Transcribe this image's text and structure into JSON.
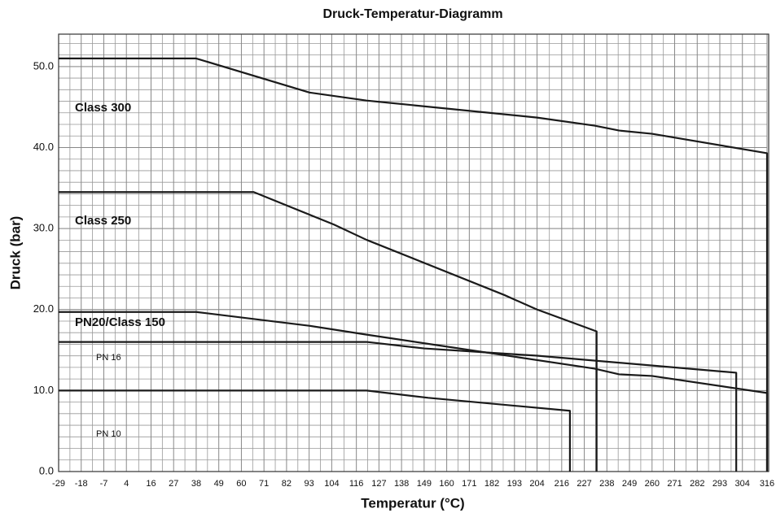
{
  "chart_data": {
    "type": "line",
    "title": "Druck-Temperatur-Diagramm",
    "x_label": "Temperatur (°C)",
    "y_label": "Druck (bar)",
    "xlim": [
      -29,
      316
    ],
    "ylim": [
      0,
      54
    ],
    "xticks": [
      -29,
      -18,
      -7,
      4,
      16,
      27,
      38,
      49,
      60,
      71,
      82,
      93,
      104,
      116,
      127,
      138,
      149,
      160,
      171,
      182,
      193,
      204,
      216,
      227,
      238,
      249,
      260,
      271,
      282,
      293,
      304,
      316
    ],
    "yticks": [
      {
        "value": 0,
        "label": "0.0"
      },
      {
        "value": 10,
        "label": "10.0"
      },
      {
        "value": 20,
        "label": "20.0"
      },
      {
        "value": 30,
        "label": "30.0"
      },
      {
        "value": 40,
        "label": "40.0"
      },
      {
        "value": 50,
        "label": "50.0"
      }
    ],
    "grid": true,
    "series": [
      {
        "name": "Class 300",
        "color": "#1a1a1a",
        "x": [
          -29,
          38,
          93,
          121,
          204,
          232,
          244,
          260,
          316,
          316
        ],
        "values": [
          51.0,
          51.0,
          46.8,
          45.8,
          43.7,
          42.7,
          42.1,
          41.7,
          39.3,
          0
        ]
      },
      {
        "name": "Class 250",
        "color": "#1a1a1a",
        "x": [
          -29,
          66,
          105,
          121,
          188,
          204,
          233,
          233
        ],
        "values": [
          34.5,
          34.5,
          30.5,
          28.6,
          21.8,
          20.0,
          17.3,
          0
        ]
      },
      {
        "name": "PN20/Class 150",
        "color": "#1a1a1a",
        "x": [
          -29,
          38,
          93,
          121,
          232,
          244,
          260,
          316,
          316
        ],
        "values": [
          19.7,
          19.7,
          18.0,
          16.9,
          12.7,
          12.0,
          11.8,
          9.7,
          0
        ]
      },
      {
        "name": "PN 16",
        "color": "#1a1a1a",
        "x": [
          -29,
          121,
          149,
          204,
          301,
          301
        ],
        "values": [
          16.0,
          16.0,
          15.2,
          14.3,
          12.2,
          0
        ]
      },
      {
        "name": "PN 10",
        "color": "#1a1a1a",
        "x": [
          -29,
          121,
          151,
          220,
          220
        ],
        "values": [
          10.0,
          10.0,
          9.1,
          7.5,
          0
        ]
      }
    ]
  }
}
